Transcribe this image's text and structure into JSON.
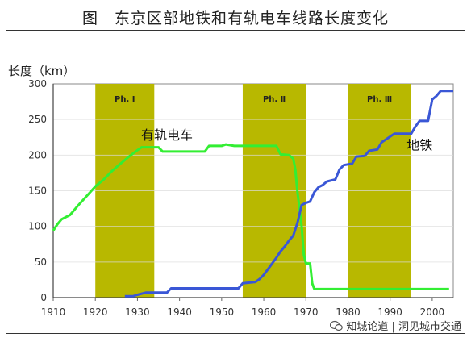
{
  "figure_title": "图　东京区部地铁和有轨电车线路长度变化",
  "watermark": "知城论道 | 洞见城市交通",
  "colors": {
    "phase_band": "#b8b800",
    "tram": "#33ee33",
    "subway": "#3a57d6",
    "axis": "#444444",
    "grid": "#dcdcdc"
  },
  "chart_data": {
    "type": "line",
    "title": "",
    "ylabel": "长度（km）",
    "xlabel": "",
    "xlim": [
      1910,
      2005
    ],
    "ylim": [
      0,
      300
    ],
    "xticks": [
      1910,
      1920,
      1930,
      1940,
      1950,
      1960,
      1970,
      1980,
      1990,
      2000
    ],
    "yticks": [
      0,
      50,
      100,
      150,
      200,
      250,
      300
    ],
    "grid": "horizontal",
    "phases": [
      {
        "label": "Ph. Ⅰ",
        "start": 1920,
        "end": 1934
      },
      {
        "label": "Ph. Ⅱ",
        "start": 1955,
        "end": 1970
      },
      {
        "label": "Ph. Ⅲ",
        "start": 1980,
        "end": 1995
      }
    ],
    "series": [
      {
        "name": "有轨电车",
        "color": "#33ee33",
        "points": [
          [
            1910,
            94
          ],
          [
            1911,
            103
          ],
          [
            1912,
            110
          ],
          [
            1914,
            116
          ],
          [
            1916,
            130
          ],
          [
            1918,
            143
          ],
          [
            1920,
            156
          ],
          [
            1922,
            166
          ],
          [
            1924,
            178
          ],
          [
            1926,
            188
          ],
          [
            1928,
            198
          ],
          [
            1930,
            207
          ],
          [
            1931,
            211
          ],
          [
            1935,
            211
          ],
          [
            1936,
            205
          ],
          [
            1946,
            205
          ],
          [
            1947,
            213
          ],
          [
            1950,
            213
          ],
          [
            1951,
            215
          ],
          [
            1953,
            213
          ],
          [
            1957,
            213
          ],
          [
            1959,
            213
          ],
          [
            1961,
            213
          ],
          [
            1963,
            213
          ],
          [
            1964,
            201
          ],
          [
            1966,
            200
          ],
          [
            1967,
            195
          ],
          [
            1967.5,
            180
          ],
          [
            1968,
            148
          ],
          [
            1968.5,
            125
          ],
          [
            1969,
            100
          ],
          [
            1969.5,
            60
          ],
          [
            1970,
            48
          ],
          [
            1971,
            48
          ],
          [
            1971.5,
            20
          ],
          [
            1972,
            12
          ],
          [
            2004,
            12
          ]
        ]
      },
      {
        "name": "地铁",
        "color": "#3a57d6",
        "points": [
          [
            1927,
            2
          ],
          [
            1929,
            2
          ],
          [
            1930,
            4
          ],
          [
            1932,
            7
          ],
          [
            1937,
            7
          ],
          [
            1938,
            13
          ],
          [
            1954,
            13
          ],
          [
            1955,
            20
          ],
          [
            1958,
            22
          ],
          [
            1959,
            26
          ],
          [
            1960,
            32
          ],
          [
            1961,
            40
          ],
          [
            1962,
            48
          ],
          [
            1963,
            56
          ],
          [
            1964,
            65
          ],
          [
            1965,
            72
          ],
          [
            1966,
            80
          ],
          [
            1967,
            87
          ],
          [
            1968,
            105
          ],
          [
            1969,
            130
          ],
          [
            1970,
            133
          ],
          [
            1971,
            135
          ],
          [
            1972,
            148
          ],
          [
            1973,
            155
          ],
          [
            1974,
            158
          ],
          [
            1975,
            163
          ],
          [
            1977,
            166
          ],
          [
            1978,
            180
          ],
          [
            1979,
            186
          ],
          [
            1981,
            188
          ],
          [
            1982,
            198
          ],
          [
            1984,
            199
          ],
          [
            1985,
            206
          ],
          [
            1987,
            208
          ],
          [
            1988,
            218
          ],
          [
            1989,
            222
          ],
          [
            1990,
            226
          ],
          [
            1991,
            230
          ],
          [
            1995,
            230
          ],
          [
            1996,
            240
          ],
          [
            1997,
            248
          ],
          [
            1999,
            248
          ],
          [
            2000,
            278
          ],
          [
            2001,
            283
          ],
          [
            2002,
            290
          ],
          [
            2005,
            290
          ]
        ]
      }
    ]
  }
}
